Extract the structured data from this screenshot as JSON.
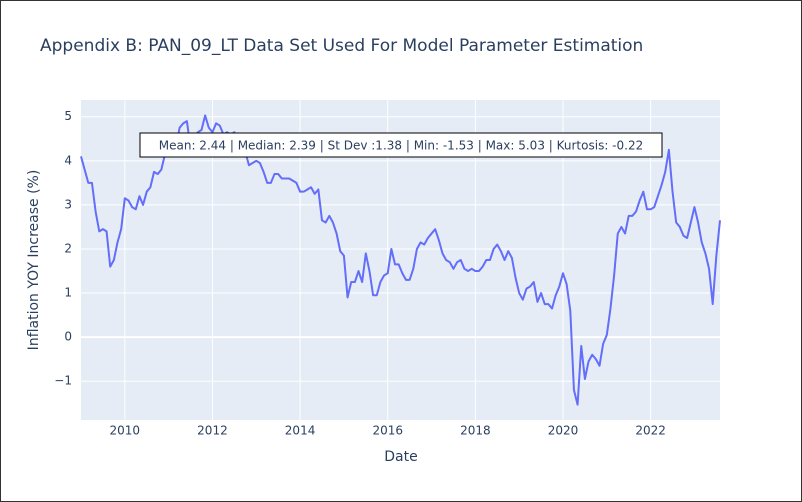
{
  "chart_data": {
    "type": "line",
    "title": "Appendix B: PAN_09_LT Data Set Used For Model Parameter Estimation",
    "xlabel": "Date",
    "ylabel": "Inflation YOY Increase (%)",
    "annotation": "Mean: 2.44 | Median: 2.39 | St Dev :1.38 | Min: -1.53 | Max: 5.03 | Kurtosis: -0.22",
    "x": [
      "2009-01",
      "2009-02",
      "2009-03",
      "2009-04",
      "2009-05",
      "2009-06",
      "2009-07",
      "2009-08",
      "2009-09",
      "2009-10",
      "2009-11",
      "2009-12",
      "2010-01",
      "2010-02",
      "2010-03",
      "2010-04",
      "2010-05",
      "2010-06",
      "2010-07",
      "2010-08",
      "2010-09",
      "2010-10",
      "2010-11",
      "2010-12",
      "2011-01",
      "2011-02",
      "2011-03",
      "2011-04",
      "2011-05",
      "2011-06",
      "2011-07",
      "2011-08",
      "2011-09",
      "2011-10",
      "2011-11",
      "2011-12",
      "2012-01",
      "2012-02",
      "2012-03",
      "2012-04",
      "2012-05",
      "2012-06",
      "2012-07",
      "2012-08",
      "2012-09",
      "2012-10",
      "2012-11",
      "2012-12",
      "2013-01",
      "2013-02",
      "2013-03",
      "2013-04",
      "2013-05",
      "2013-06",
      "2013-07",
      "2013-08",
      "2013-09",
      "2013-10",
      "2013-11",
      "2013-12",
      "2014-01",
      "2014-02",
      "2014-03",
      "2014-04",
      "2014-05",
      "2014-06",
      "2014-07",
      "2014-08",
      "2014-09",
      "2014-10",
      "2014-11",
      "2014-12",
      "2015-01",
      "2015-02",
      "2015-03",
      "2015-04",
      "2015-05",
      "2015-06",
      "2015-07",
      "2015-08",
      "2015-09",
      "2015-10",
      "2015-11",
      "2015-12",
      "2016-01",
      "2016-02",
      "2016-03",
      "2016-04",
      "2016-05",
      "2016-06",
      "2016-07",
      "2016-08",
      "2016-09",
      "2016-10",
      "2016-11",
      "2016-12",
      "2017-01",
      "2017-02",
      "2017-03",
      "2017-04",
      "2017-05",
      "2017-06",
      "2017-07",
      "2017-08",
      "2017-09",
      "2017-10",
      "2017-11",
      "2017-12",
      "2018-01",
      "2018-02",
      "2018-03",
      "2018-04",
      "2018-05",
      "2018-06",
      "2018-07",
      "2018-08",
      "2018-09",
      "2018-10",
      "2018-11",
      "2018-12",
      "2019-01",
      "2019-02",
      "2019-03",
      "2019-04",
      "2019-05",
      "2019-06",
      "2019-07",
      "2019-08",
      "2019-09",
      "2019-10",
      "2019-11",
      "2019-12",
      "2020-01",
      "2020-02",
      "2020-03",
      "2020-04",
      "2020-05",
      "2020-06",
      "2020-07",
      "2020-08",
      "2020-09",
      "2020-10",
      "2020-11",
      "2020-12",
      "2021-01",
      "2021-02",
      "2021-03",
      "2021-04",
      "2021-05",
      "2021-06",
      "2021-07",
      "2021-08",
      "2021-09",
      "2021-10",
      "2021-11",
      "2021-12",
      "2022-01",
      "2022-02",
      "2022-03",
      "2022-04",
      "2022-05",
      "2022-06",
      "2022-07",
      "2022-08",
      "2022-09",
      "2022-10",
      "2022-11",
      "2022-12",
      "2023-01",
      "2023-02",
      "2023-03",
      "2023-04",
      "2023-05",
      "2023-06",
      "2023-07",
      "2023-08"
    ],
    "series": [
      {
        "name": "PAN_09_LT",
        "color": "#636efa",
        "values": [
          4.1,
          3.8,
          3.5,
          3.5,
          2.85,
          2.4,
          2.45,
          2.4,
          1.6,
          1.75,
          2.15,
          2.45,
          3.15,
          3.1,
          2.95,
          2.9,
          3.2,
          3.0,
          3.3,
          3.4,
          3.75,
          3.7,
          3.8,
          4.15,
          4.1,
          4.2,
          4.3,
          4.75,
          4.85,
          4.9,
          4.3,
          4.55,
          4.65,
          4.7,
          5.03,
          4.75,
          4.65,
          4.85,
          4.8,
          4.6,
          4.65,
          4.6,
          4.65,
          4.4,
          4.3,
          4.2,
          3.9,
          3.95,
          4.0,
          3.95,
          3.75,
          3.5,
          3.5,
          3.7,
          3.7,
          3.6,
          3.6,
          3.6,
          3.55,
          3.5,
          3.3,
          3.3,
          3.35,
          3.4,
          3.25,
          3.35,
          2.65,
          2.6,
          2.75,
          2.6,
          2.35,
          1.95,
          1.85,
          0.9,
          1.25,
          1.25,
          1.5,
          1.25,
          1.9,
          1.5,
          0.95,
          0.95,
          1.25,
          1.4,
          1.45,
          2.0,
          1.65,
          1.65,
          1.45,
          1.3,
          1.3,
          1.55,
          2.0,
          2.15,
          2.1,
          2.25,
          2.35,
          2.45,
          2.2,
          1.9,
          1.75,
          1.7,
          1.55,
          1.7,
          1.75,
          1.55,
          1.5,
          1.55,
          1.5,
          1.5,
          1.6,
          1.75,
          1.75,
          2.0,
          2.1,
          1.95,
          1.75,
          1.95,
          1.8,
          1.35,
          1.0,
          0.85,
          1.1,
          1.15,
          1.25,
          0.8,
          1.0,
          0.75,
          0.75,
          0.65,
          0.95,
          1.15,
          1.45,
          1.2,
          0.6,
          -1.2,
          -1.53,
          -0.2,
          -0.95,
          -0.55,
          -0.4,
          -0.5,
          -0.65,
          -0.15,
          0.05,
          0.65,
          1.4,
          2.35,
          2.5,
          2.35,
          2.75,
          2.75,
          2.85,
          3.1,
          3.3,
          2.9,
          2.9,
          2.95,
          3.2,
          3.45,
          3.75,
          4.25,
          3.3,
          2.6,
          2.5,
          2.3,
          2.25,
          2.6,
          2.95,
          2.6,
          2.15,
          1.9,
          1.55,
          0.75,
          1.85,
          2.65
        ]
      }
    ],
    "xlim": [
      "2009-01",
      "2023-08"
    ],
    "xticks": [
      2010,
      2012,
      2014,
      2016,
      2018,
      2020,
      2022
    ],
    "ylim": [
      -1.88,
      5.38
    ],
    "yticks": [
      {
        "value": -1,
        "label": "−1"
      },
      0,
      1,
      2,
      3,
      4,
      5
    ],
    "grid": true
  }
}
